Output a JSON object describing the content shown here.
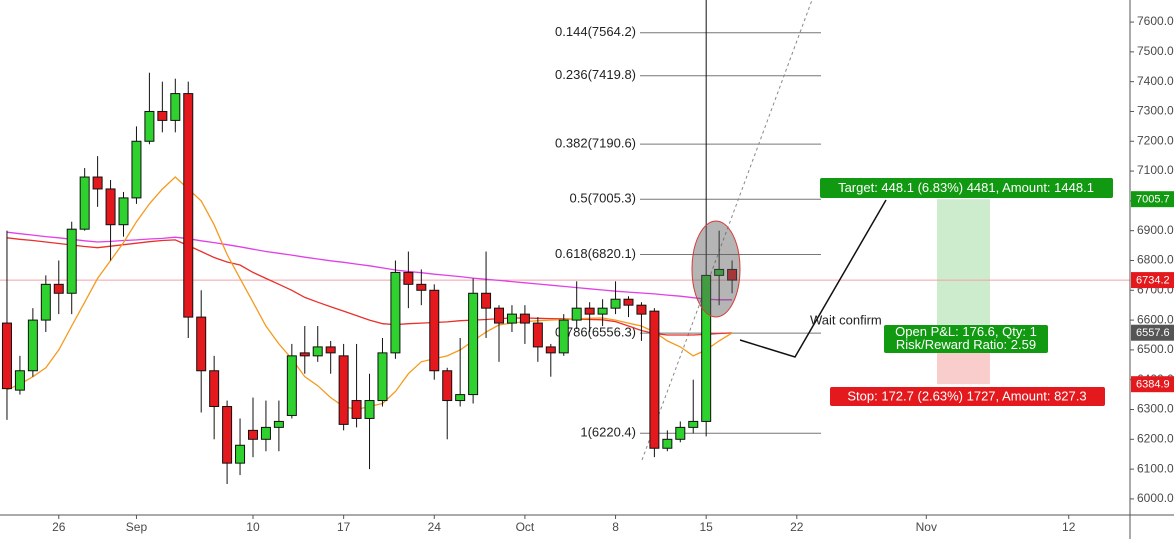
{
  "chart_data": {
    "type": "candlestick",
    "categories": [
      null,
      null,
      null,
      null,
      "26",
      null,
      null,
      null,
      null,
      null,
      "Sep",
      null,
      null,
      null,
      null,
      null,
      null,
      null,
      null,
      "10",
      null,
      null,
      null,
      null,
      null,
      null,
      "17",
      null,
      null,
      null,
      null,
      null,
      null,
      "24",
      null,
      null,
      null,
      null,
      null,
      null,
      "Oct",
      null,
      null,
      null,
      null,
      null,
      null,
      "8",
      null,
      null,
      null,
      null,
      null,
      null,
      "15",
      null,
      null,
      null,
      null,
      null,
      null,
      "22",
      null,
      null,
      null,
      null,
      null,
      null,
      null,
      null,
      null,
      "Nov",
      null,
      null,
      null,
      null,
      null,
      null,
      null,
      null,
      null,
      null,
      "12",
      null,
      null,
      null,
      null
    ],
    "open": [
      6590,
      6365,
      6430,
      6600,
      6720,
      6690,
      6905,
      7080,
      7040,
      6920,
      7010,
      7200,
      7300,
      7270,
      7360,
      6610,
      6430,
      6310,
      6120,
      6230,
      6200,
      6240,
      6280,
      6490,
      6480,
      6510,
      6480,
      6330,
      6270,
      6330,
      6490,
      6760,
      6720,
      6700,
      6430,
      6330,
      6350,
      6690,
      6640,
      6590,
      6620,
      6590,
      6510,
      6490,
      6600,
      6640,
      6620,
      6640,
      6670,
      6650,
      6630,
      6170,
      6200,
      6240,
      6260,
      6750,
      6770,
      null,
      null,
      null,
      null,
      null,
      null,
      null,
      null,
      null,
      null,
      null,
      null,
      null,
      null,
      null,
      null,
      null,
      null,
      null,
      null,
      null,
      null,
      null,
      null,
      null,
      null,
      null,
      null,
      null,
      null
    ],
    "high": [
      6900,
      6480,
      6640,
      6750,
      6800,
      6930,
      7110,
      7150,
      7070,
      7030,
      7250,
      7430,
      7400,
      7410,
      7400,
      6700,
      6480,
      6330,
      6270,
      6340,
      6330,
      6330,
      6520,
      6580,
      6580,
      6530,
      6520,
      6520,
      6420,
      6540,
      6800,
      6830,
      6770,
      6720,
      6440,
      6540,
      6740,
      6830,
      6650,
      6650,
      6650,
      6610,
      6520,
      6620,
      6730,
      6660,
      6670,
      6730,
      6680,
      6660,
      6640,
      6230,
      6260,
      6400,
      7700,
      6900,
      6800,
      null,
      null,
      null,
      null,
      null,
      null,
      null,
      null,
      null,
      null,
      null,
      null,
      null,
      null,
      null,
      null,
      null,
      null,
      null,
      null,
      null,
      null,
      null,
      null,
      null,
      null,
      null,
      null,
      null,
      null
    ],
    "low": [
      6265,
      6350,
      6410,
      6560,
      6620,
      6620,
      6900,
      6980,
      6800,
      6880,
      6990,
      7190,
      7230,
      7230,
      6540,
      6290,
      6200,
      6050,
      6080,
      6140,
      6160,
      6160,
      6270,
      6420,
      6460,
      6420,
      6230,
      6240,
      6100,
      6310,
      6470,
      6640,
      6650,
      6400,
      6200,
      6310,
      6320,
      6540,
      6460,
      6560,
      6520,
      6460,
      6410,
      6480,
      6570,
      6560,
      6580,
      6620,
      6610,
      6530,
      6140,
      6160,
      6190,
      6220,
      6210,
      6650,
      6690,
      null,
      null,
      null,
      null,
      null,
      null,
      null,
      null,
      null,
      null,
      null,
      null,
      null,
      null,
      null,
      null,
      null,
      null,
      null,
      null,
      null,
      null,
      null,
      null,
      null,
      null,
      null,
      null,
      null,
      null
    ],
    "close": [
      6370,
      6430,
      6600,
      6720,
      6690,
      6905,
      7080,
      7040,
      6920,
      7010,
      7200,
      7300,
      7270,
      7360,
      6610,
      6430,
      6310,
      6120,
      6180,
      6200,
      6240,
      6260,
      6480,
      6480,
      6510,
      6490,
      6250,
      6270,
      6330,
      6490,
      6760,
      6720,
      6700,
      6430,
      6330,
      6350,
      6690,
      6640,
      6590,
      6620,
      6590,
      6510,
      6490,
      6600,
      6640,
      6620,
      6640,
      6670,
      6650,
      6620,
      6170,
      6200,
      6240,
      6260,
      6750,
      6770,
      6734.2,
      null,
      null,
      null,
      null,
      null,
      null,
      null,
      null,
      null,
      null,
      null,
      null,
      null,
      null,
      null,
      null,
      null,
      null,
      null,
      null,
      null,
      null,
      null,
      null,
      null,
      null,
      null,
      null,
      null,
      null
    ],
    "up_color": "#2ed12e",
    "down_color": "#e3191e",
    "series": [
      {
        "color": "#e040e6",
        "values": [
          6895,
          6890,
          6885,
          6880,
          6876,
          6871,
          6866,
          6862,
          6864,
          6867,
          6869,
          6872,
          6874,
          6878,
          6873,
          6866,
          6860,
          6853,
          6846,
          6838,
          6830,
          6824,
          6818,
          6811,
          6805,
          6799,
          6794,
          6788,
          6782,
          6775,
          6768,
          6763,
          6759,
          6754,
          6750,
          6746,
          6741,
          6737,
          6733,
          6729,
          6725,
          6721,
          6717,
          6713,
          6709,
          6705,
          6701,
          6697,
          6694,
          6691,
          6688,
          6684,
          6680,
          6675,
          6670,
          6668,
          6668,
          null,
          null,
          null,
          null,
          null,
          null,
          null,
          null,
          null,
          null,
          null,
          null,
          null,
          null,
          null,
          null,
          null,
          null,
          null,
          null,
          null,
          null,
          null,
          null,
          null,
          null,
          null,
          null,
          null,
          null
        ]
      },
      {
        "color": "#e8302c",
        "values": [
          6876,
          6871,
          6867,
          6862,
          6857,
          6852,
          6847,
          6843,
          6848,
          6853,
          6858,
          6863,
          6867,
          6869,
          6850,
          6830,
          6810,
          6795,
          6785,
          6760,
          6740,
          6720,
          6700,
          6676,
          6660,
          6645,
          6630,
          6615,
          6600,
          6588,
          6585,
          6588,
          6590,
          6592,
          6594,
          6598,
          6600,
          6602,
          6605,
          6607,
          6607,
          6606,
          6605,
          6604,
          6603,
          6602,
          6601,
          6595,
          6580,
          6565,
          6555,
          6550,
          6550,
          6550,
          6552,
          6555,
          6557,
          null,
          null,
          null,
          null,
          null,
          null,
          null,
          null,
          null,
          null,
          null,
          null,
          null,
          null,
          null,
          null,
          null,
          null,
          null,
          null,
          null,
          null,
          null,
          null,
          null,
          null,
          null,
          null,
          null,
          null
        ]
      },
      {
        "color": "#f59a1e",
        "values": [
          6366,
          6385,
          6410,
          6440,
          6500,
          6580,
          6660,
          6740,
          6800,
          6860,
          6930,
          6990,
          7040,
          7080,
          7040,
          7000,
          6920,
          6820,
          6740,
          6660,
          6580,
          6520,
          6470,
          6410,
          6380,
          6340,
          6310,
          6300,
          6310,
          6320,
          6360,
          6420,
          6460,
          6470,
          6480,
          6500,
          6530,
          6560,
          6584,
          6590,
          6595,
          6598,
          6600,
          6602,
          6604,
          6606,
          6607,
          6600,
          6590,
          6580,
          6560,
          6530,
          6510,
          6480,
          6500,
          6530,
          6557,
          null,
          null,
          null,
          null,
          null,
          null,
          null,
          null,
          null,
          null,
          null,
          null,
          null,
          null,
          null,
          null,
          null,
          null,
          null,
          null,
          null,
          null,
          null,
          null,
          null,
          null,
          null,
          null,
          null,
          null
        ]
      }
    ],
    "ylim": [
      5946,
      7674
    ],
    "yticks": [
      {
        "value": 6000,
        "label": "6000.0"
      },
      {
        "value": 6100,
        "label": "6100.0"
      },
      {
        "value": 6200,
        "label": "6200.0"
      },
      {
        "value": 6300,
        "label": "6300.0"
      },
      {
        "value": 6400,
        "label": "6400.0"
      },
      {
        "value": 6500,
        "label": "6500.0"
      },
      {
        "value": 6600,
        "label": "6600.0"
      },
      {
        "value": 6700,
        "label": "6700.0"
      },
      {
        "value": 6800,
        "label": "6800.0"
      },
      {
        "value": 6900,
        "label": "6900.0"
      },
      {
        "value": 7000,
        "label": "7000.0"
      },
      {
        "value": 7100,
        "label": "7100.0"
      },
      {
        "value": 7200,
        "label": "7200.0"
      },
      {
        "value": 7300,
        "label": "7300.0"
      },
      {
        "value": 7400,
        "label": "7400.0"
      },
      {
        "value": 7500,
        "label": "7500.0"
      },
      {
        "value": 7600,
        "label": "7600.0"
      }
    ],
    "grid": false,
    "fib_levels": [
      {
        "value": 7564.2,
        "label": "0.144(7564.2)"
      },
      {
        "value": 7419.8,
        "label": "0.236(7419.8)"
      },
      {
        "value": 7190.6,
        "label": "0.382(7190.6)"
      },
      {
        "value": 7005.3,
        "label": "0.5(7005.3)"
      },
      {
        "value": 6820.1,
        "label": "0.618(6820.1)"
      },
      {
        "value": 6556.3,
        "label": "0.786(6556.3)"
      },
      {
        "value": 6220.4,
        "label": "1(6220.4)"
      }
    ],
    "price_tags": [
      {
        "value": 7005.7,
        "color": "#119a11"
      },
      {
        "value": 6734.2,
        "color": "#e3191e"
      },
      {
        "value": 6557.6,
        "color": "#555555"
      },
      {
        "value": 6384.9,
        "color": "#e3191e"
      }
    ],
    "note": "Wait confirm",
    "target": "Target: 448.1 (6.83%) 4481, Amount: 1448.1",
    "pnl": [
      "Open P&L: 176.6, Qty: 1",
      "Risk/Reward Ratio: 2.59"
    ],
    "stop": "Stop: 172.7 (2.63%) 1727, Amount: 827.3"
  }
}
